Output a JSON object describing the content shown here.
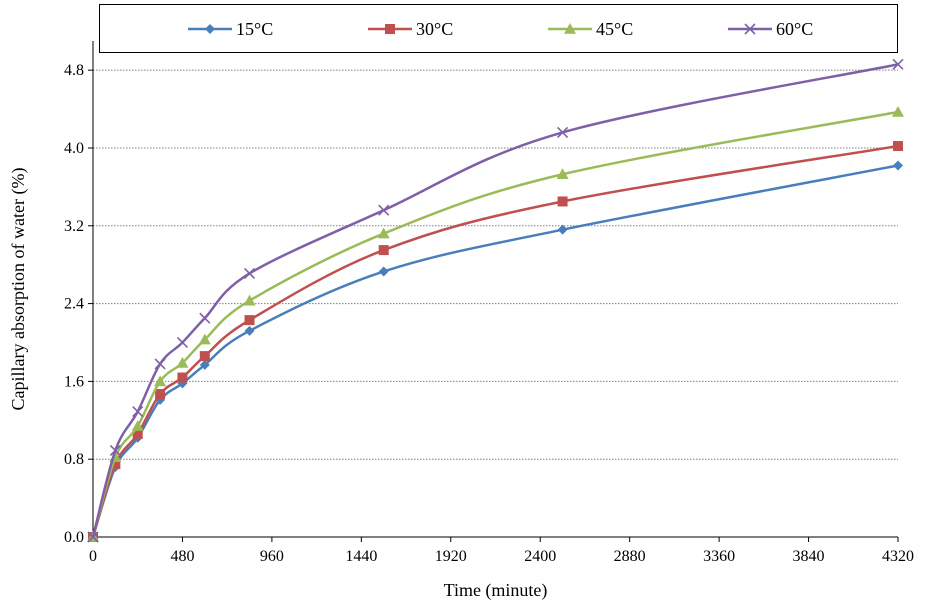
{
  "chart_data": {
    "type": "line",
    "title": "",
    "xlabel": "Time  (minute)",
    "ylabel": "Capillary absorption of water (%)",
    "xlim": [
      0,
      4320
    ],
    "ylim": [
      0,
      5.1
    ],
    "x_ticks": [
      0,
      480,
      960,
      1440,
      1920,
      2400,
      2880,
      3360,
      3840,
      4320
    ],
    "x_tick_labels": [
      "0",
      "480",
      "960",
      "1440",
      "1920",
      "2400",
      "2880",
      "3360",
      "3840",
      "4320"
    ],
    "y_ticks": [
      0,
      0.8,
      1.6,
      2.4,
      3.2,
      4.0,
      4.8
    ],
    "y_tick_labels": [
      "0.0",
      "0.8",
      "1.6",
      "2.4",
      "3.2",
      "4.0",
      "4.8"
    ],
    "grid": "horizontal",
    "legend_position": "top",
    "series": [
      {
        "name": "15°C",
        "color": "#4a7ebb",
        "marker": "diamond",
        "x": [
          0,
          120,
          240,
          360,
          480,
          600,
          840,
          1560,
          2520,
          4320
        ],
        "y": [
          0,
          0.72,
          1.02,
          1.41,
          1.58,
          1.77,
          2.12,
          2.73,
          3.16,
          3.82
        ]
      },
      {
        "name": "30°C",
        "color": "#c0504d",
        "marker": "square",
        "x": [
          0,
          120,
          240,
          360,
          480,
          600,
          840,
          1560,
          2520,
          4320
        ],
        "y": [
          0,
          0.75,
          1.06,
          1.47,
          1.64,
          1.86,
          2.23,
          2.95,
          3.45,
          4.02
        ]
      },
      {
        "name": "45°C",
        "color": "#9bbb59",
        "marker": "triangle",
        "x": [
          0,
          120,
          240,
          360,
          480,
          600,
          840,
          1560,
          2520,
          4320
        ],
        "y": [
          0,
          0.82,
          1.14,
          1.6,
          1.79,
          2.03,
          2.43,
          3.12,
          3.73,
          4.37
        ]
      },
      {
        "name": "60°C",
        "color": "#7f5fa8",
        "marker": "x",
        "x": [
          0,
          120,
          240,
          360,
          480,
          600,
          840,
          1560,
          2520,
          4320
        ],
        "y": [
          0,
          0.89,
          1.29,
          1.78,
          2.0,
          2.25,
          2.71,
          3.36,
          4.16,
          4.86
        ]
      }
    ]
  }
}
